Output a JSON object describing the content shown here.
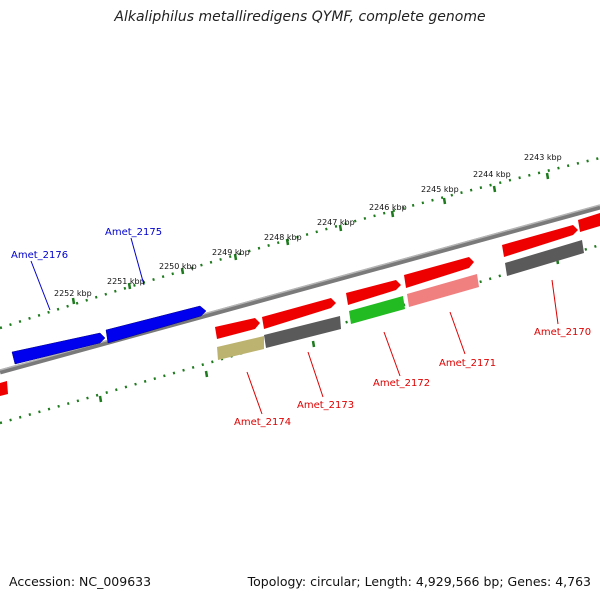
{
  "header": {
    "title": "Alkaliphilus metalliredigens QYMF, complete genome"
  },
  "footer": {
    "accession": "Accession: NC_009633",
    "summary": "Topology: circular; Length: 4,929,566 bp; Genes: 4,763"
  },
  "colors": {
    "backbone": "#7a7a7a",
    "tick_dots": "#1d7a1d",
    "forward_gene": "#ee0000",
    "reverse_gene": "#0000ee",
    "gray_gene": "#5a5a5a",
    "green_gene": "#22bb22",
    "pink_gene": "#f08080",
    "olive_gene": "#bdb370",
    "label_red": "#dd0000",
    "label_blue": "#0000cc"
  },
  "ticks": [
    {
      "label": "2243 kbp"
    },
    {
      "label": "2244 kbp"
    },
    {
      "label": "2245 kbp"
    },
    {
      "label": "2246 kbp"
    },
    {
      "label": "2247 kbp"
    },
    {
      "label": "2248 kbp"
    },
    {
      "label": "2249 kbp"
    },
    {
      "label": "2250 kbp"
    },
    {
      "label": "2251 kbp"
    },
    {
      "label": "2252 kbp"
    }
  ],
  "gene_labels": [
    {
      "text": "Amet_2176"
    },
    {
      "text": "Amet_2175"
    },
    {
      "text": "Amet_2174"
    },
    {
      "text": "Amet_2173"
    },
    {
      "text": "Amet_2172"
    },
    {
      "text": "Amet_2171"
    },
    {
      "text": "Amet_2170"
    }
  ]
}
